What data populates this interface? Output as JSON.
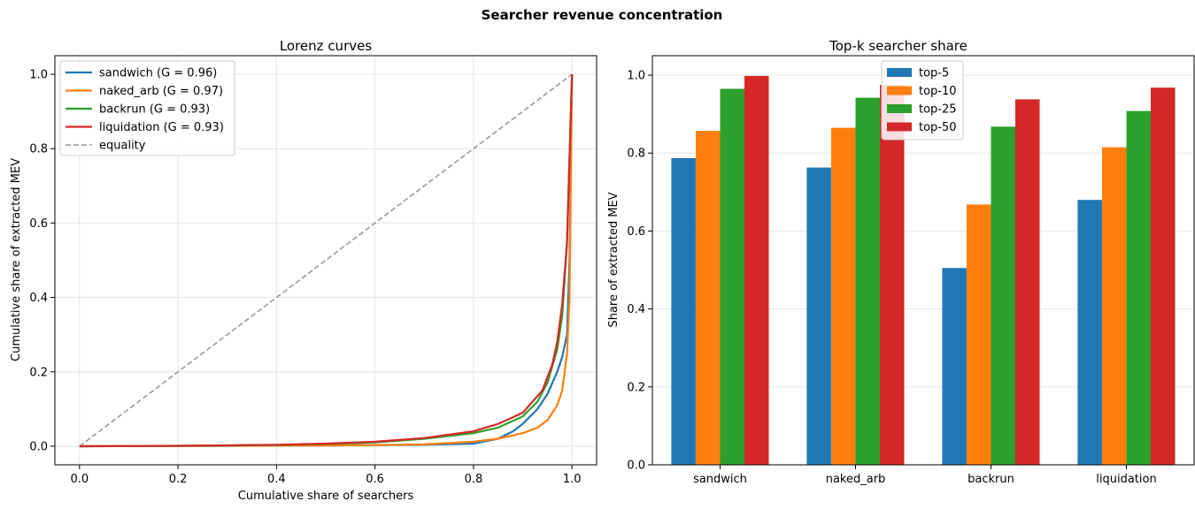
{
  "figure": {
    "title": "Searcher revenue concentration"
  },
  "colors": {
    "sandwich": "#1f77b4",
    "naked_arb": "#ff7f0e",
    "backrun": "#2ca02c",
    "liquidation": "#d62728",
    "equality": "#999999",
    "grid": "#e6e6e6"
  },
  "chart_data": [
    {
      "type": "line",
      "title": "Lorenz curves",
      "xlabel": "Cumulative share of searchers",
      "ylabel": "Cumulative share of extracted MEV",
      "xlim": [
        -0.05,
        1.05
      ],
      "ylim": [
        -0.05,
        1.05
      ],
      "xticks": [
        "0.0",
        "0.2",
        "0.4",
        "0.6",
        "0.8",
        "1.0"
      ],
      "yticks": [
        "0.0",
        "0.2",
        "0.4",
        "0.6",
        "0.8",
        "1.0"
      ],
      "grid": true,
      "legend": "top-left",
      "series": [
        {
          "name": "sandwich (G = 0.96)",
          "key": "sandwich",
          "points": [
            [
              0,
              0
            ],
            [
              0.3,
              0.001
            ],
            [
              0.5,
              0.002
            ],
            [
              0.6,
              0.003
            ],
            [
              0.7,
              0.004
            ],
            [
              0.8,
              0.007
            ],
            [
              0.85,
              0.02
            ],
            [
              0.88,
              0.04
            ],
            [
              0.9,
              0.06
            ],
            [
              0.93,
              0.1
            ],
            [
              0.95,
              0.14
            ],
            [
              0.97,
              0.2
            ],
            [
              0.98,
              0.24
            ],
            [
              0.99,
              0.3
            ],
            [
              0.995,
              0.5
            ],
            [
              1.0,
              1.0
            ]
          ]
        },
        {
          "name": "naked_arb (G = 0.97)",
          "key": "naked_arb",
          "points": [
            [
              0,
              0
            ],
            [
              0.3,
              0.001
            ],
            [
              0.5,
              0.002
            ],
            [
              0.6,
              0.003
            ],
            [
              0.7,
              0.005
            ],
            [
              0.8,
              0.012
            ],
            [
              0.85,
              0.02
            ],
            [
              0.9,
              0.035
            ],
            [
              0.93,
              0.05
            ],
            [
              0.95,
              0.07
            ],
            [
              0.97,
              0.11
            ],
            [
              0.98,
              0.15
            ],
            [
              0.99,
              0.25
            ],
            [
              0.995,
              0.4
            ],
            [
              1.0,
              1.0
            ]
          ]
        },
        {
          "name": "backrun (G = 0.93)",
          "key": "backrun",
          "points": [
            [
              0,
              0
            ],
            [
              0.2,
              0.001
            ],
            [
              0.4,
              0.003
            ],
            [
              0.5,
              0.006
            ],
            [
              0.6,
              0.01
            ],
            [
              0.7,
              0.02
            ],
            [
              0.8,
              0.035
            ],
            [
              0.85,
              0.05
            ],
            [
              0.9,
              0.08
            ],
            [
              0.93,
              0.12
            ],
            [
              0.95,
              0.17
            ],
            [
              0.97,
              0.26
            ],
            [
              0.98,
              0.35
            ],
            [
              0.99,
              0.55
            ],
            [
              1.0,
              1.0
            ]
          ]
        },
        {
          "name": "liquidation (G = 0.93)",
          "key": "liquidation",
          "points": [
            [
              0,
              0
            ],
            [
              0.2,
              0.001
            ],
            [
              0.4,
              0.004
            ],
            [
              0.5,
              0.007
            ],
            [
              0.6,
              0.012
            ],
            [
              0.7,
              0.022
            ],
            [
              0.8,
              0.04
            ],
            [
              0.85,
              0.06
            ],
            [
              0.9,
              0.09
            ],
            [
              0.94,
              0.15
            ],
            [
              0.96,
              0.22
            ],
            [
              0.97,
              0.28
            ],
            [
              0.98,
              0.38
            ],
            [
              0.99,
              0.55
            ],
            [
              1.0,
              1.0
            ]
          ]
        },
        {
          "name": "equality",
          "key": "equality",
          "dashed": true,
          "points": [
            [
              0,
              0
            ],
            [
              1,
              1
            ]
          ]
        }
      ]
    },
    {
      "type": "bar",
      "title": "Top-k searcher share",
      "xlabel": "",
      "ylabel": "Share of extracted MEV",
      "ylim": [
        0,
        1.05
      ],
      "yticks": [
        "0.0",
        "0.2",
        "0.4",
        "0.6",
        "0.8",
        "1.0"
      ],
      "grid": true,
      "legend": "top-center",
      "categories": [
        "sandwich",
        "naked_arb",
        "backrun",
        "liquidation"
      ],
      "series": [
        {
          "name": "top-5",
          "key": "sandwich",
          "values": [
            0.787,
            0.763,
            0.505,
            0.68
          ]
        },
        {
          "name": "top-10",
          "key": "naked_arb",
          "values": [
            0.857,
            0.865,
            0.668,
            0.815
          ]
        },
        {
          "name": "top-25",
          "key": "backrun",
          "values": [
            0.965,
            0.942,
            0.868,
            0.908
          ]
        },
        {
          "name": "top-50",
          "key": "liquidation",
          "values": [
            0.998,
            0.975,
            0.938,
            0.968
          ]
        }
      ]
    }
  ]
}
